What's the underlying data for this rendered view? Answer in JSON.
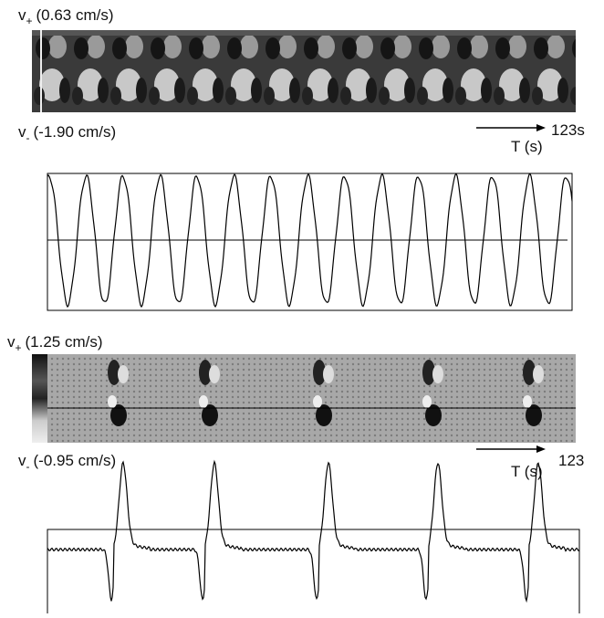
{
  "panels": [
    {
      "v_plus": {
        "symbol": "v",
        "sub": "+",
        "label": "(0.63 cm/s)"
      },
      "v_minus": {
        "symbol": "v",
        "sub": "-",
        "label": "(-1.90 cm/s)"
      },
      "time_axis": "T (s)",
      "duration": "123s"
    },
    {
      "v_plus": {
        "symbol": "v",
        "sub": "+",
        "label": "(1.25 cm/s)"
      },
      "v_minus": {
        "symbol": "v",
        "sub": "-",
        "label": "(-0.95 cm/s)"
      },
      "time_axis": "T (s)",
      "duration": "123"
    }
  ]
}
